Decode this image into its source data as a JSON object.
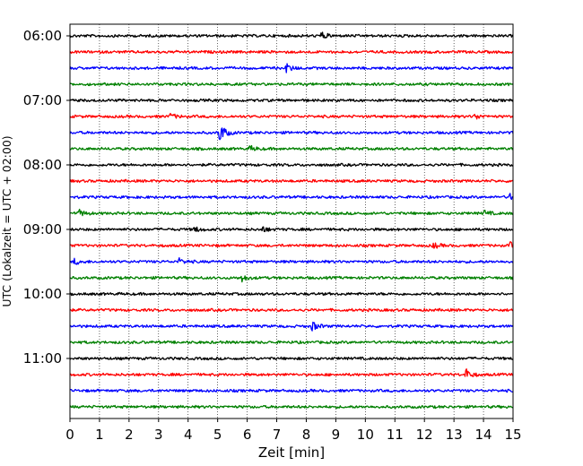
{
  "chart_data": {
    "type": "line",
    "title": "",
    "xlabel": "Zeit  [min]",
    "ylabel": "UTC (Lokalzeit = UTC + 02:00)",
    "xlim": [
      0,
      15
    ],
    "x_ticks": [
      "0",
      "1",
      "2",
      "3",
      "4",
      "5",
      "6",
      "7",
      "8",
      "9",
      "10",
      "11",
      "12",
      "13",
      "14",
      "15"
    ],
    "y_ticks": [
      "06:00",
      "07:00",
      "08:00",
      "09:00",
      "10:00",
      "11:00"
    ],
    "grid": "vertical dotted",
    "legend": "none",
    "trace_interval_minutes": 15,
    "colors": [
      "#000000",
      "#ff0000",
      "#0000ff",
      "#008000"
    ],
    "traces": [
      {
        "start": "06:00",
        "color": "#000000",
        "events": [
          {
            "t": 8.5,
            "amp": 4
          }
        ]
      },
      {
        "start": "06:15",
        "color": "#ff0000",
        "events": []
      },
      {
        "start": "06:30",
        "color": "#0000ff",
        "events": [
          {
            "t": 7.3,
            "amp": 5
          }
        ]
      },
      {
        "start": "06:45",
        "color": "#008000",
        "events": []
      },
      {
        "start": "07:00",
        "color": "#000000",
        "events": []
      },
      {
        "start": "07:15",
        "color": "#ff0000",
        "events": [
          {
            "t": 3.4,
            "amp": 3
          },
          {
            "t": 13.7,
            "amp": 3
          }
        ]
      },
      {
        "start": "07:30",
        "color": "#0000ff",
        "events": [
          {
            "t": 5.05,
            "amp": 12
          }
        ]
      },
      {
        "start": "07:45",
        "color": "#008000",
        "events": [
          {
            "t": 6.1,
            "amp": 3
          }
        ]
      },
      {
        "start": "08:00",
        "color": "#000000",
        "events": []
      },
      {
        "start": "08:15",
        "color": "#ff0000",
        "events": []
      },
      {
        "start": "08:30",
        "color": "#0000ff",
        "events": [
          {
            "t": 14.9,
            "amp": 3
          }
        ]
      },
      {
        "start": "08:45",
        "color": "#008000",
        "events": [
          {
            "t": 0.3,
            "amp": 4
          },
          {
            "t": 14.0,
            "amp": 3
          }
        ]
      },
      {
        "start": "09:00",
        "color": "#000000",
        "events": [
          {
            "t": 4.2,
            "amp": 3
          },
          {
            "t": 6.5,
            "amp": 3
          }
        ]
      },
      {
        "start": "09:15",
        "color": "#ff0000",
        "events": [
          {
            "t": 12.3,
            "amp": 3
          },
          {
            "t": 14.9,
            "amp": 3
          }
        ]
      },
      {
        "start": "09:30",
        "color": "#0000ff",
        "events": [
          {
            "t": 0.15,
            "amp": 3
          },
          {
            "t": 3.7,
            "amp": 3
          }
        ]
      },
      {
        "start": "09:45",
        "color": "#008000",
        "events": [
          {
            "t": 5.8,
            "amp": 4
          }
        ]
      },
      {
        "start": "10:00",
        "color": "#000000",
        "events": []
      },
      {
        "start": "10:15",
        "color": "#ff0000",
        "events": []
      },
      {
        "start": "10:30",
        "color": "#0000ff",
        "events": [
          {
            "t": 8.2,
            "amp": 5
          }
        ]
      },
      {
        "start": "10:45",
        "color": "#008000",
        "events": []
      },
      {
        "start": "11:00",
        "color": "#000000",
        "events": []
      },
      {
        "start": "11:15",
        "color": "#ff0000",
        "events": [
          {
            "t": 13.4,
            "amp": 6
          }
        ]
      },
      {
        "start": "11:30",
        "color": "#0000ff",
        "events": []
      },
      {
        "start": "11:45",
        "color": "#008000",
        "events": []
      }
    ]
  }
}
